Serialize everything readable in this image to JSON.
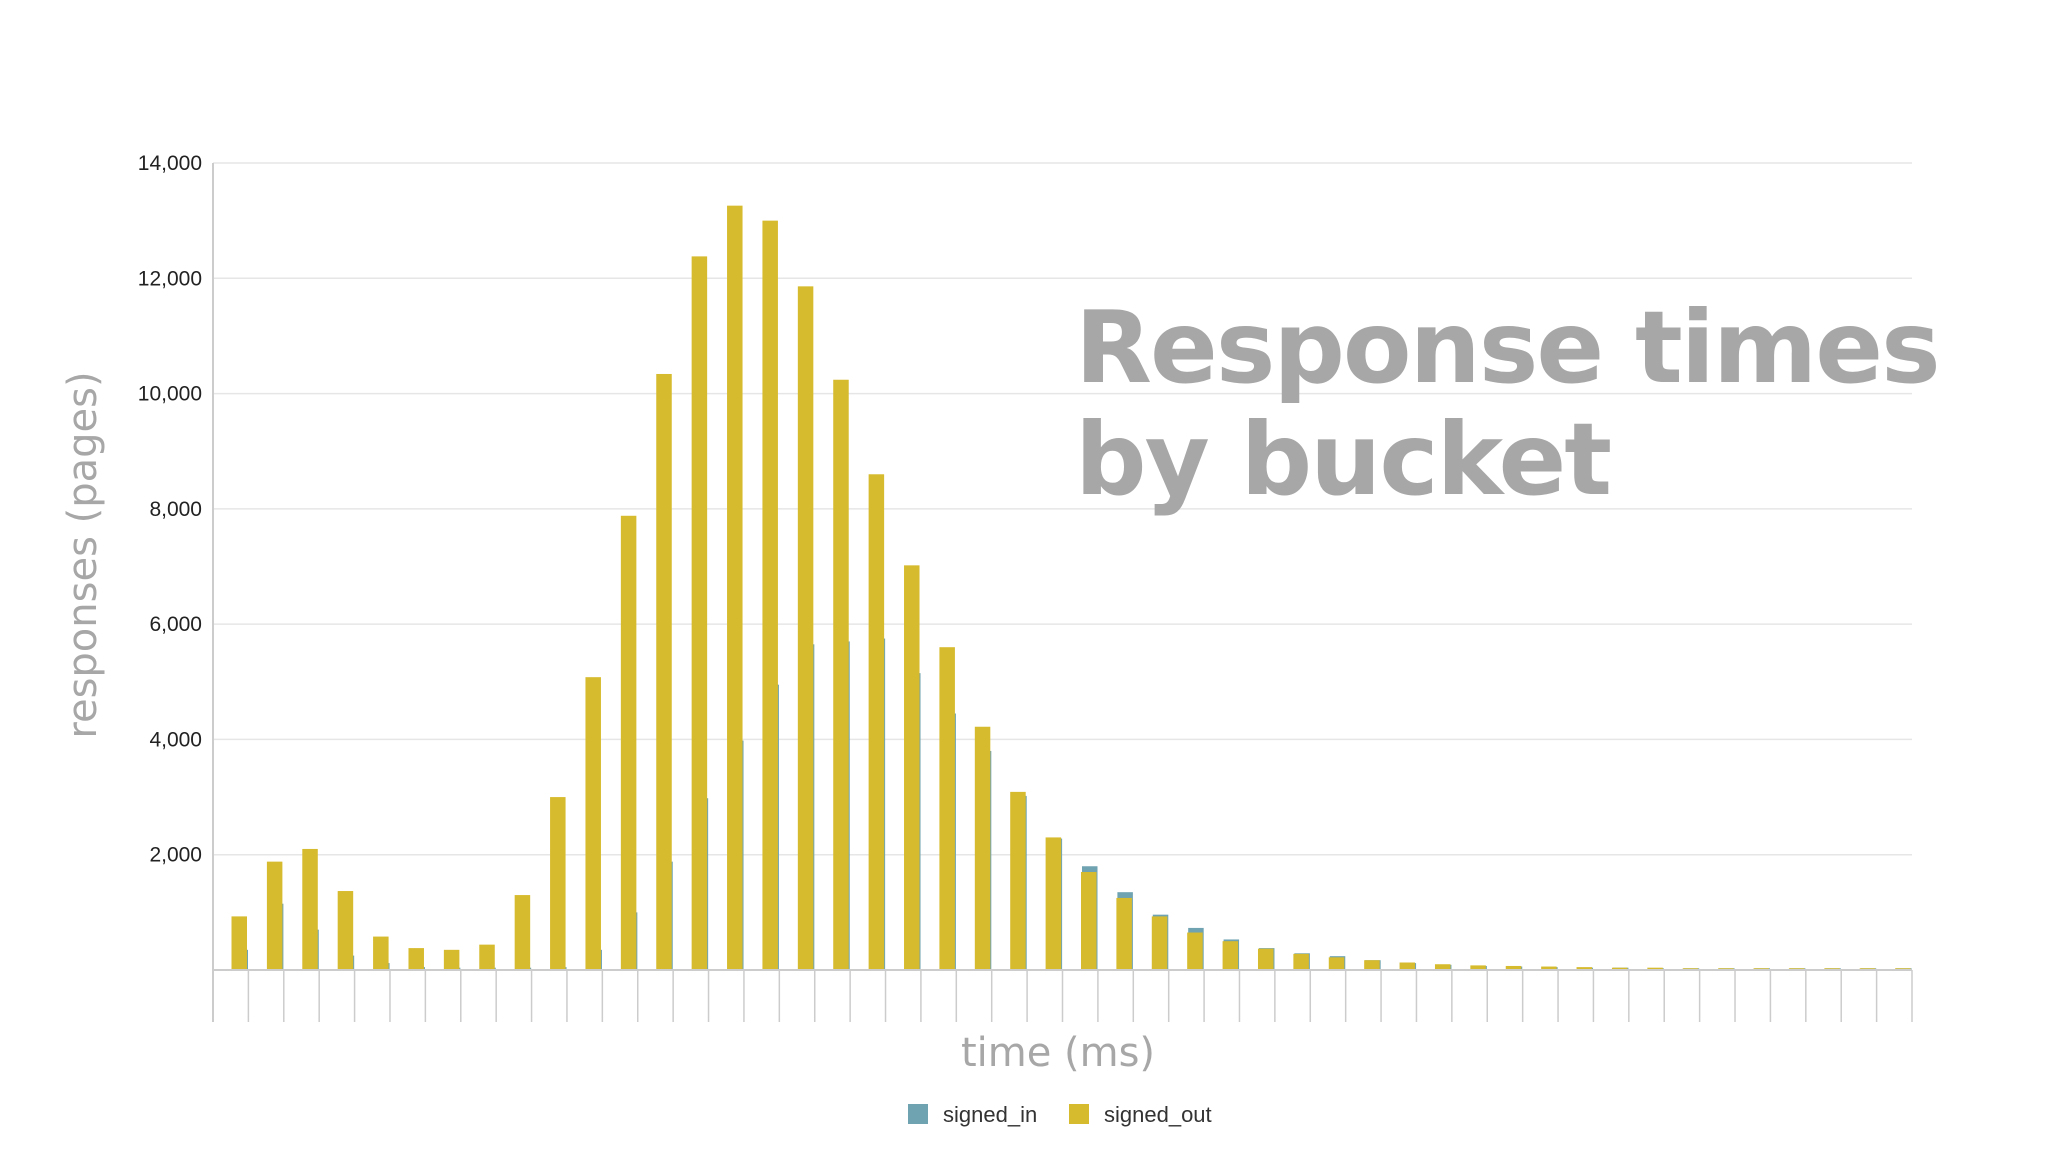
{
  "slide": {
    "title_line1": "Response times",
    "title_line2": "by bucket"
  },
  "colors": {
    "signed_in": "#6fa3b1",
    "signed_out": "#d7bb2e",
    "grid": "#e6e6e6",
    "axis": "#cccccc"
  },
  "chart_data": {
    "type": "bar",
    "xlabel": "time (ms)",
    "ylabel": "responses (pages)",
    "ylim": [
      0,
      14000
    ],
    "yticks": [
      2000,
      4000,
      6000,
      8000,
      10000,
      12000,
      14000
    ],
    "ytick_labels": [
      "2,000",
      "4,000",
      "6,000",
      "8,000",
      "10,000",
      "12,000",
      "14,000"
    ],
    "bucket_count": 48,
    "grid": true,
    "legend_position": "bottom-center",
    "series": [
      {
        "name": "signed_in",
        "values": [
          350,
          1150,
          700,
          250,
          120,
          50,
          40,
          40,
          40,
          50,
          350,
          1000,
          1880,
          2980,
          3980,
          4950,
          5650,
          5700,
          5750,
          5150,
          4450,
          3800,
          3020,
          2280,
          1800,
          1350,
          960,
          730,
          530,
          380,
          290,
          240,
          170,
          120,
          90,
          70,
          60,
          50,
          40,
          40,
          30,
          30,
          30,
          30,
          30,
          30,
          30,
          30
        ]
      },
      {
        "name": "signed_out",
        "values": [
          930,
          1880,
          2100,
          1370,
          580,
          380,
          350,
          440,
          1300,
          3000,
          5080,
          7880,
          10340,
          12380,
          13260,
          13000,
          11860,
          10240,
          8600,
          7020,
          5600,
          4220,
          3090,
          2300,
          1700,
          1250,
          930,
          650,
          500,
          370,
          280,
          220,
          170,
          130,
          100,
          80,
          70,
          60,
          50,
          40,
          40,
          30,
          30,
          30,
          30,
          30,
          30,
          30
        ]
      }
    ]
  }
}
